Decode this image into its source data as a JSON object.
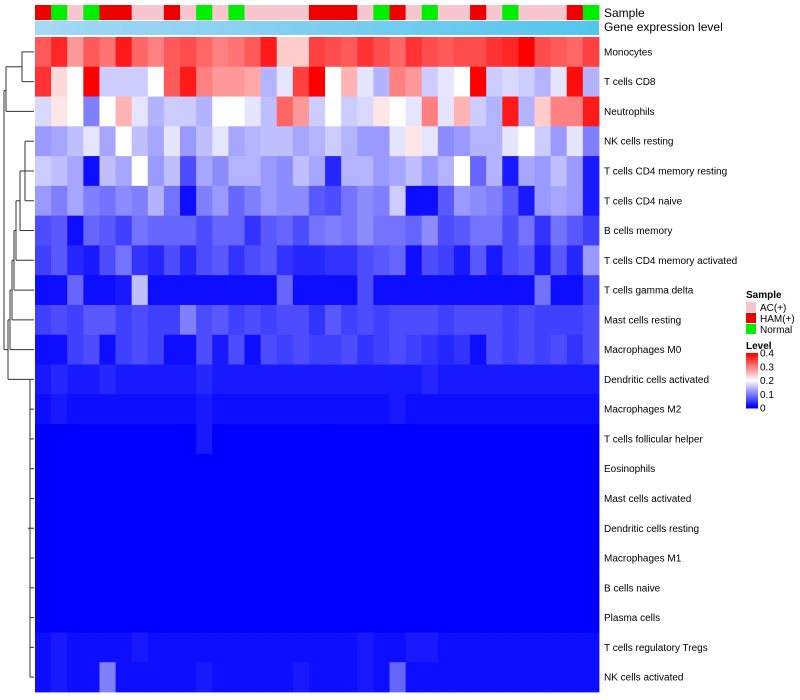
{
  "chart_data": {
    "type": "heatmap",
    "annotation_labels": [
      "Sample",
      "Gene expression level"
    ],
    "columns_sample": [
      "HAM(+)",
      "Normal",
      "AC(+)",
      "Normal",
      "HAM(+)",
      "HAM(+)",
      "AC(+)",
      "AC(+)",
      "HAM(+)",
      "AC(+)",
      "Normal",
      "AC(+)",
      "Normal",
      "AC(+)",
      "AC(+)",
      "AC(+)",
      "AC(+)",
      "HAM(+)",
      "HAM(+)",
      "HAM(+)",
      "AC(+)",
      "Normal",
      "HAM(+)",
      "AC(+)",
      "Normal",
      "AC(+)",
      "AC(+)",
      "HAM(+)",
      "AC(+)",
      "Normal",
      "AC(+)",
      "AC(+)",
      "AC(+)",
      "HAM(+)",
      "Normal"
    ],
    "rows": [
      "Monocytes",
      "T cells CD8",
      "Neutrophils",
      "NK cells resting",
      "T cells CD4 memory resting",
      "T cells CD4 naive",
      "B cells memory",
      "T cells CD4 memory activated",
      "T cells gamma delta",
      "Mast cells resting",
      "Macrophages M0",
      "Dendritic cells activated",
      "Macrophages M2",
      "T cells follicular helper",
      "Eosinophils",
      "Mast cells activated",
      "Dendritic cells resting",
      "Macrophages M1",
      "B cells naive",
      "Plasma cells",
      "T cells regulatory  Tregs",
      "NK cells activated"
    ],
    "values": [
      [
        0.33,
        0.37,
        0.28,
        0.33,
        0.31,
        0.38,
        0.32,
        0.3,
        0.33,
        0.34,
        0.32,
        0.3,
        0.31,
        0.33,
        0.38,
        0.24,
        0.24,
        0.35,
        0.34,
        0.33,
        0.36,
        0.34,
        0.32,
        0.36,
        0.34,
        0.33,
        0.34,
        0.34,
        0.36,
        0.37,
        0.4,
        0.34,
        0.33,
        0.32,
        0.35
      ],
      [
        0.36,
        0.23,
        0.2,
        0.4,
        0.16,
        0.16,
        0.16,
        0.2,
        0.33,
        0.38,
        0.3,
        0.28,
        0.28,
        0.27,
        0.14,
        0.18,
        0.35,
        0.4,
        0.2,
        0.26,
        0.18,
        0.14,
        0.3,
        0.28,
        0.16,
        0.18,
        0.2,
        0.4,
        0.16,
        0.17,
        0.16,
        0.14,
        0.18,
        0.39,
        0.14
      ],
      [
        0.17,
        0.22,
        0.2,
        0.1,
        0.2,
        0.26,
        0.18,
        0.14,
        0.16,
        0.16,
        0.14,
        0.2,
        0.2,
        0.18,
        0.15,
        0.32,
        0.28,
        0.16,
        0.2,
        0.16,
        0.17,
        0.22,
        0.2,
        0.18,
        0.3,
        0.18,
        0.26,
        0.16,
        0.14,
        0.38,
        0.14,
        0.24,
        0.3,
        0.3,
        0.38
      ],
      [
        0.12,
        0.13,
        0.15,
        0.18,
        0.13,
        0.2,
        0.15,
        0.13,
        0.18,
        0.12,
        0.15,
        0.18,
        0.13,
        0.14,
        0.15,
        0.15,
        0.13,
        0.14,
        0.16,
        0.14,
        0.12,
        0.12,
        0.18,
        0.22,
        0.18,
        0.11,
        0.12,
        0.14,
        0.14,
        0.18,
        0.2,
        0.16,
        0.12,
        0.18,
        0.1
      ],
      [
        0.16,
        0.15,
        0.13,
        0.01,
        0.15,
        0.13,
        0.2,
        0.12,
        0.15,
        0.06,
        0.13,
        0.11,
        0.14,
        0.14,
        0.12,
        0.11,
        0.15,
        0.13,
        0.03,
        0.14,
        0.14,
        0.12,
        0.13,
        0.15,
        0.12,
        0.14,
        0.2,
        0.08,
        0.14,
        0.02,
        0.13,
        0.12,
        0.15,
        0.12,
        0.02
      ],
      [
        0.12,
        0.1,
        0.13,
        0.1,
        0.09,
        0.11,
        0.1,
        0.14,
        0.09,
        0.01,
        0.1,
        0.12,
        0.08,
        0.1,
        0.12,
        0.11,
        0.11,
        0.07,
        0.06,
        0.09,
        0.11,
        0.1,
        0.16,
        0.01,
        0.01,
        0.07,
        0.12,
        0.11,
        0.1,
        0.07,
        0.02,
        0.12,
        0.13,
        0.12,
        0.02
      ],
      [
        0.06,
        0.07,
        0.01,
        0.08,
        0.07,
        0.05,
        0.09,
        0.08,
        0.08,
        0.08,
        0.06,
        0.08,
        0.08,
        0.04,
        0.07,
        0.08,
        0.06,
        0.09,
        0.1,
        0.09,
        0.11,
        0.09,
        0.09,
        0.08,
        0.11,
        0.06,
        0.07,
        0.09,
        0.09,
        0.06,
        0.09,
        0.04,
        0.09,
        0.07,
        0.05
      ],
      [
        0.05,
        0.07,
        0.03,
        0.02,
        0.06,
        0.09,
        0.04,
        0.03,
        0.06,
        0.03,
        0.06,
        0.07,
        0.04,
        0.06,
        0.07,
        0.04,
        0.03,
        0.03,
        0.04,
        0.04,
        0.06,
        0.07,
        0.08,
        0.01,
        0.06,
        0.05,
        0.02,
        0.07,
        0.02,
        0.06,
        0.07,
        0.02,
        0.07,
        0.03,
        0.12
      ],
      [
        0.01,
        0.01,
        0.08,
        0.01,
        0.01,
        0.02,
        0.15,
        0.01,
        0.01,
        0.01,
        0.01,
        0.01,
        0.01,
        0.01,
        0.01,
        0.08,
        0.01,
        0.01,
        0.01,
        0.01,
        0.06,
        0.01,
        0.01,
        0.01,
        0.01,
        0.01,
        0.01,
        0.01,
        0.01,
        0.01,
        0.01,
        0.09,
        0.01,
        0.01,
        0.05
      ],
      [
        0.05,
        0.06,
        0.05,
        0.07,
        0.07,
        0.05,
        0.06,
        0.05,
        0.05,
        0.1,
        0.06,
        0.07,
        0.05,
        0.06,
        0.05,
        0.06,
        0.06,
        0.04,
        0.07,
        0.05,
        0.06,
        0.05,
        0.06,
        0.06,
        0.06,
        0.05,
        0.06,
        0.06,
        0.06,
        0.05,
        0.06,
        0.05,
        0.05,
        0.05,
        0.06
      ],
      [
        0.01,
        0.01,
        0.05,
        0.06,
        0.01,
        0.05,
        0.06,
        0.05,
        0.01,
        0.01,
        0.06,
        0.02,
        0.06,
        0.01,
        0.06,
        0.05,
        0.06,
        0.05,
        0.05,
        0.06,
        0.04,
        0.05,
        0.06,
        0.05,
        0.04,
        0.03,
        0.04,
        0.01,
        0.06,
        0.05,
        0.06,
        0.05,
        0.06,
        0.04,
        0.06
      ],
      [
        0.02,
        0.03,
        0.02,
        0.02,
        0.03,
        0.02,
        0.02,
        0.02,
        0.02,
        0.02,
        0.03,
        0.02,
        0.02,
        0.02,
        0.02,
        0.02,
        0.02,
        0.02,
        0.02,
        0.02,
        0.02,
        0.02,
        0.02,
        0.02,
        0.03,
        0.02,
        0.02,
        0.02,
        0.02,
        0.02,
        0.02,
        0.02,
        0.02,
        0.02,
        0.02
      ],
      [
        0.01,
        0.02,
        0.01,
        0.01,
        0.01,
        0.01,
        0.01,
        0.01,
        0.01,
        0.01,
        0.02,
        0.01,
        0.01,
        0.01,
        0.01,
        0.01,
        0.01,
        0.01,
        0.01,
        0.01,
        0.01,
        0.01,
        0.02,
        0.01,
        0.01,
        0.01,
        0.01,
        0.01,
        0.01,
        0.01,
        0.01,
        0.01,
        0.01,
        0.01,
        0.01
      ],
      [
        0.0,
        0.0,
        0.0,
        0.0,
        0.0,
        0.0,
        0.0,
        0.0,
        0.0,
        0.0,
        0.02,
        0.0,
        0.0,
        0.0,
        0.0,
        0.0,
        0.0,
        0.0,
        0.0,
        0.0,
        0.0,
        0.0,
        0.0,
        0.0,
        0.0,
        0.0,
        0.0,
        0.0,
        0.0,
        0.0,
        0.0,
        0.0,
        0.0,
        0.0,
        0.0
      ],
      [
        0.0,
        0.0,
        0.0,
        0.0,
        0.0,
        0.0,
        0.0,
        0.0,
        0.0,
        0.0,
        0.0,
        0.0,
        0.0,
        0.0,
        0.0,
        0.0,
        0.0,
        0.0,
        0.0,
        0.0,
        0.0,
        0.0,
        0.0,
        0.0,
        0.0,
        0.0,
        0.0,
        0.0,
        0.0,
        0.0,
        0.0,
        0.0,
        0.0,
        0.0,
        0.0
      ],
      [
        0.0,
        0.0,
        0.0,
        0.0,
        0.0,
        0.0,
        0.0,
        0.0,
        0.0,
        0.0,
        0.0,
        0.0,
        0.0,
        0.0,
        0.0,
        0.0,
        0.0,
        0.0,
        0.0,
        0.0,
        0.0,
        0.0,
        0.0,
        0.0,
        0.0,
        0.0,
        0.0,
        0.0,
        0.0,
        0.0,
        0.0,
        0.0,
        0.0,
        0.0,
        0.0
      ],
      [
        0.0,
        0.0,
        0.0,
        0.0,
        0.0,
        0.0,
        0.0,
        0.0,
        0.0,
        0.0,
        0.0,
        0.0,
        0.0,
        0.0,
        0.0,
        0.0,
        0.0,
        0.0,
        0.0,
        0.0,
        0.0,
        0.0,
        0.0,
        0.0,
        0.0,
        0.0,
        0.0,
        0.0,
        0.0,
        0.0,
        0.0,
        0.0,
        0.0,
        0.0,
        0.0
      ],
      [
        0.0,
        0.0,
        0.0,
        0.0,
        0.0,
        0.0,
        0.0,
        0.0,
        0.0,
        0.0,
        0.0,
        0.0,
        0.0,
        0.0,
        0.0,
        0.0,
        0.0,
        0.0,
        0.0,
        0.0,
        0.0,
        0.0,
        0.0,
        0.0,
        0.0,
        0.0,
        0.0,
        0.0,
        0.0,
        0.0,
        0.0,
        0.0,
        0.0,
        0.0,
        0.0
      ],
      [
        0.0,
        0.0,
        0.0,
        0.0,
        0.0,
        0.0,
        0.0,
        0.0,
        0.0,
        0.0,
        0.0,
        0.0,
        0.0,
        0.0,
        0.0,
        0.0,
        0.0,
        0.0,
        0.0,
        0.0,
        0.0,
        0.0,
        0.0,
        0.0,
        0.0,
        0.0,
        0.0,
        0.0,
        0.0,
        0.0,
        0.0,
        0.0,
        0.0,
        0.0,
        0.0
      ],
      [
        0.0,
        0.0,
        0.0,
        0.0,
        0.0,
        0.0,
        0.0,
        0.0,
        0.0,
        0.0,
        0.0,
        0.0,
        0.0,
        0.0,
        0.0,
        0.0,
        0.0,
        0.0,
        0.0,
        0.0,
        0.0,
        0.0,
        0.0,
        0.0,
        0.0,
        0.0,
        0.0,
        0.0,
        0.0,
        0.0,
        0.0,
        0.0,
        0.0,
        0.0,
        0.0
      ],
      [
        0.01,
        0.02,
        0.01,
        0.01,
        0.01,
        0.01,
        0.02,
        0.01,
        0.01,
        0.01,
        0.01,
        0.01,
        0.01,
        0.01,
        0.01,
        0.01,
        0.01,
        0.01,
        0.01,
        0.01,
        0.02,
        0.01,
        0.01,
        0.02,
        0.02,
        0.01,
        0.01,
        0.01,
        0.01,
        0.01,
        0.01,
        0.01,
        0.01,
        0.01,
        0.01
      ],
      [
        0.01,
        0.02,
        0.01,
        0.01,
        0.1,
        0.01,
        0.01,
        0.01,
        0.01,
        0.01,
        0.02,
        0.01,
        0.01,
        0.01,
        0.01,
        0.01,
        0.02,
        0.01,
        0.01,
        0.01,
        0.02,
        0.01,
        0.08,
        0.01,
        0.01,
        0.01,
        0.01,
        0.01,
        0.01,
        0.01,
        0.01,
        0.01,
        0.01,
        0.01,
        0.01
      ]
    ],
    "legend_sample": {
      "title": "Sample",
      "items": [
        {
          "label": "AC(+)",
          "color": "#f7c6cf"
        },
        {
          "label": "HAM(+)",
          "color": "#ee0000"
        },
        {
          "label": "Normal",
          "color": "#00ee00"
        }
      ]
    },
    "legend_level": {
      "title": "Level",
      "range": [
        0,
        0.4
      ],
      "ticks": [
        "0.4",
        "0.3",
        "0.2",
        "0.1",
        "0"
      ],
      "colors": {
        "low": "#0000ff",
        "mid": "#ffffff",
        "high": "#ff0000"
      }
    },
    "gene_expression_color": "#a6d8f3",
    "gene_expression_color_end": "#54c5ee"
  }
}
